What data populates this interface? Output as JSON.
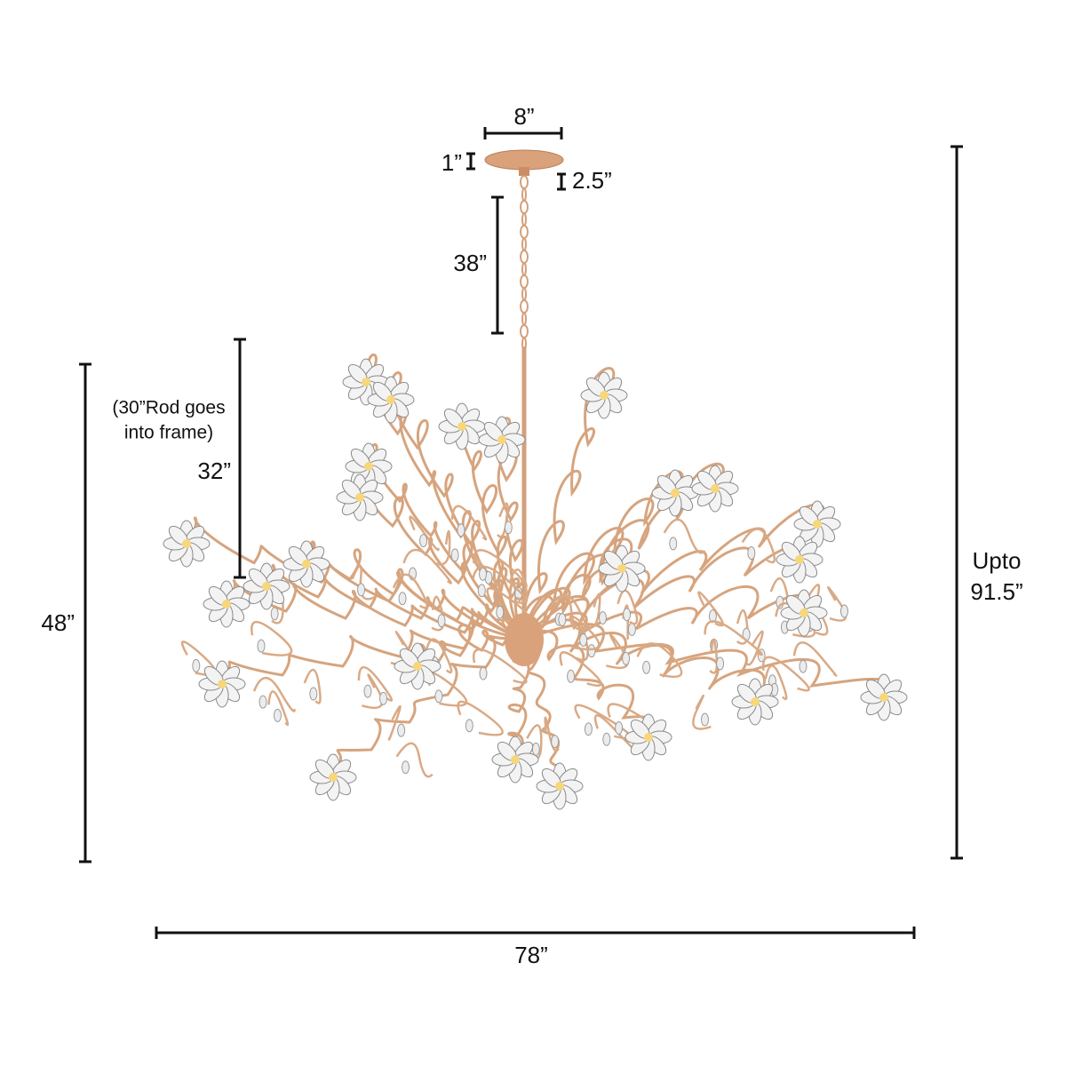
{
  "canopy_width": "8”",
  "canopy_height": "1”",
  "canopy_depth": "2.5”",
  "chain_length": "38”",
  "rod_note": [
    "(30”Rod goes",
    "into frame)"
  ],
  "rod_length": "32”",
  "fixture_height": "48”",
  "overall_height": [
    "Upto",
    "91.5”"
  ],
  "fixture_width": "78”"
}
